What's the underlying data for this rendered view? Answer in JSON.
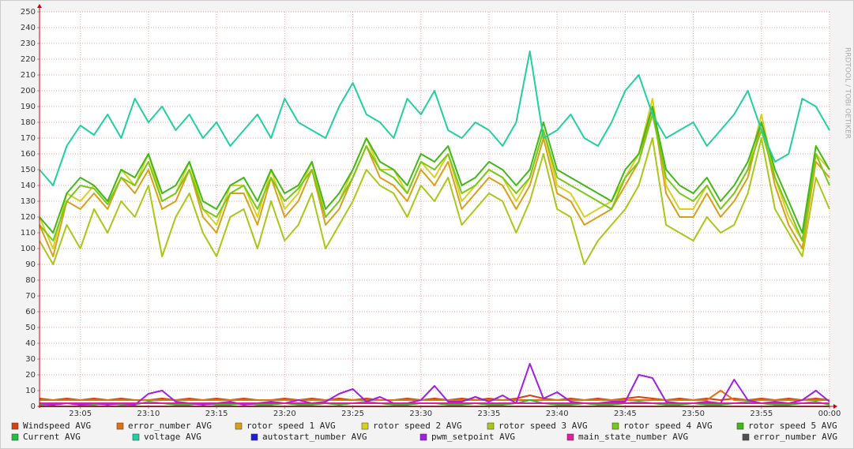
{
  "chart_data": {
    "type": "line",
    "watermark": "RRDTOOL / TOBI OETIKER",
    "xlim": [
      2,
      60
    ],
    "ylim": [
      0,
      250
    ],
    "yticks": [
      0,
      10,
      20,
      30,
      40,
      50,
      60,
      70,
      80,
      90,
      100,
      110,
      120,
      130,
      140,
      150,
      160,
      170,
      180,
      190,
      200,
      210,
      220,
      230,
      240,
      250
    ],
    "xticks": [
      {
        "value": 5,
        "label": "23:05"
      },
      {
        "value": 10,
        "label": "23:10"
      },
      {
        "value": 15,
        "label": "23:15"
      },
      {
        "value": 20,
        "label": "23:20"
      },
      {
        "value": 25,
        "label": "23:25"
      },
      {
        "value": 30,
        "label": "23:30"
      },
      {
        "value": 35,
        "label": "23:35"
      },
      {
        "value": 40,
        "label": "23:40"
      },
      {
        "value": 45,
        "label": "23:45"
      },
      {
        "value": 50,
        "label": "23:50"
      },
      {
        "value": 55,
        "label": "23:55"
      },
      {
        "value": 60,
        "label": "00:00"
      }
    ],
    "grid": true,
    "x": [
      2,
      3,
      4,
      5,
      6,
      7,
      8,
      9,
      10,
      11,
      12,
      13,
      14,
      15,
      16,
      17,
      18,
      19,
      20,
      21,
      22,
      23,
      24,
      25,
      26,
      27,
      28,
      29,
      30,
      31,
      32,
      33,
      34,
      35,
      36,
      37,
      38,
      39,
      40,
      41,
      42,
      43,
      44,
      45,
      46,
      47,
      48,
      49,
      50,
      51,
      52,
      53,
      54,
      55,
      56,
      57,
      58,
      59,
      60
    ],
    "series": [
      {
        "name": "Windspeed AVG",
        "color": "#d84010",
        "values": [
          5,
          4,
          5,
          4,
          5,
          4,
          5,
          4,
          4,
          5,
          4,
          5,
          4,
          5,
          4,
          5,
          4,
          4,
          5,
          4,
          5,
          4,
          5,
          4,
          5,
          4,
          4,
          5,
          4,
          5,
          4,
          5,
          4,
          5,
          4,
          5,
          7,
          5,
          4,
          5,
          4,
          5,
          4,
          5,
          6,
          5,
          4,
          5,
          4,
          5,
          4,
          5,
          4,
          5,
          4,
          5,
          4,
          5,
          4
        ]
      },
      {
        "name": "error_number AVG",
        "color": "#e07010",
        "values": [
          4,
          4,
          4,
          4,
          4,
          4,
          4,
          4,
          4,
          4,
          4,
          4,
          4,
          4,
          4,
          4,
          4,
          4,
          4,
          4,
          4,
          4,
          4,
          4,
          4,
          4,
          4,
          4,
          4,
          4,
          4,
          4,
          4,
          4,
          4,
          4,
          4,
          4,
          4,
          4,
          4,
          4,
          4,
          4,
          4,
          4,
          4,
          4,
          4,
          4,
          10,
          4,
          4,
          4,
          4,
          4,
          4,
          4,
          4
        ]
      },
      {
        "name": "rotor speed 1 AVG",
        "color": "#d8a018",
        "values": [
          115,
          95,
          130,
          125,
          135,
          125,
          145,
          135,
          150,
          125,
          130,
          150,
          120,
          110,
          135,
          135,
          115,
          145,
          120,
          130,
          150,
          115,
          125,
          145,
          165,
          145,
          140,
          130,
          150,
          140,
          155,
          125,
          135,
          145,
          140,
          125,
          140,
          170,
          135,
          130,
          115,
          120,
          125,
          140,
          155,
          190,
          135,
          120,
          120,
          135,
          120,
          130,
          145,
          180,
          140,
          115,
          100,
          155,
          145
        ]
      },
      {
        "name": "rotor speed 2 AVG",
        "color": "#d8d020",
        "values": [
          120,
          100,
          135,
          130,
          140,
          130,
          150,
          140,
          160,
          130,
          135,
          155,
          125,
          115,
          140,
          140,
          120,
          150,
          125,
          135,
          155,
          120,
          130,
          150,
          170,
          150,
          150,
          135,
          155,
          145,
          160,
          130,
          140,
          150,
          145,
          130,
          145,
          175,
          140,
          135,
          120,
          125,
          130,
          145,
          160,
          195,
          140,
          125,
          125,
          140,
          125,
          135,
          150,
          185,
          145,
          120,
          105,
          160,
          150
        ]
      },
      {
        "name": "rotor speed 3 AVG",
        "color": "#a8c818",
        "values": [
          105,
          90,
          115,
          100,
          125,
          110,
          130,
          120,
          140,
          95,
          120,
          135,
          110,
          95,
          120,
          125,
          100,
          130,
          105,
          115,
          135,
          100,
          115,
          130,
          150,
          140,
          135,
          120,
          140,
          130,
          145,
          115,
          125,
          135,
          130,
          110,
          130,
          160,
          125,
          120,
          90,
          105,
          115,
          125,
          140,
          170,
          115,
          110,
          105,
          120,
          110,
          115,
          135,
          170,
          125,
          110,
          95,
          145,
          125
        ]
      },
      {
        "name": "rotor speed 4 AVG",
        "color": "#78c818",
        "values": [
          115,
          105,
          130,
          140,
          138,
          128,
          145,
          140,
          155,
          130,
          135,
          150,
          125,
          120,
          135,
          140,
          125,
          145,
          130,
          138,
          150,
          120,
          130,
          145,
          165,
          150,
          145,
          135,
          155,
          150,
          160,
          135,
          140,
          150,
          145,
          135,
          145,
          175,
          145,
          140,
          135,
          130,
          125,
          145,
          155,
          185,
          145,
          135,
          130,
          140,
          125,
          135,
          150,
          175,
          145,
          125,
          105,
          160,
          140
        ]
      },
      {
        "name": "rotor speed 5 AVG",
        "color": "#40b818",
        "values": [
          120,
          110,
          135,
          145,
          140,
          130,
          150,
          145,
          160,
          135,
          140,
          155,
          130,
          125,
          140,
          145,
          130,
          150,
          135,
          140,
          155,
          125,
          135,
          150,
          170,
          155,
          150,
          140,
          160,
          155,
          165,
          140,
          145,
          155,
          150,
          140,
          150,
          180,
          150,
          145,
          140,
          135,
          130,
          150,
          160,
          190,
          150,
          140,
          135,
          145,
          130,
          140,
          155,
          180,
          150,
          130,
          110,
          165,
          150
        ]
      },
      {
        "name": "Current AVG",
        "color": "#20c040",
        "values": [
          1,
          1,
          2,
          1,
          1,
          2,
          1,
          1,
          3,
          2,
          1,
          1,
          2,
          1,
          1,
          2,
          1,
          1,
          2,
          1,
          1,
          2,
          1,
          2,
          3,
          2,
          1,
          1,
          2,
          2,
          1,
          1,
          2,
          1,
          1,
          2,
          4,
          2,
          1,
          1,
          2,
          1,
          1,
          2,
          3,
          2,
          1,
          1,
          2,
          1,
          1,
          2,
          3,
          2,
          1,
          1,
          2,
          3,
          1
        ]
      },
      {
        "name": "voltage AVG",
        "color": "#20d0a0",
        "values": [
          150,
          140,
          165,
          178,
          172,
          185,
          170,
          195,
          180,
          190,
          175,
          185,
          170,
          180,
          165,
          175,
          185,
          170,
          195,
          180,
          175,
          170,
          190,
          205,
          185,
          180,
          170,
          195,
          185,
          200,
          175,
          170,
          180,
          175,
          165,
          180,
          225,
          170,
          175,
          185,
          170,
          165,
          180,
          200,
          210,
          185,
          170,
          175,
          180,
          165,
          175,
          185,
          200,
          175,
          155,
          160,
          195,
          190,
          175
        ]
      },
      {
        "name": "autostart_number AVG",
        "color": "#2020d0",
        "values": [
          0,
          0,
          0,
          0,
          0,
          0,
          0,
          0,
          0,
          0,
          0,
          0,
          0,
          0,
          0,
          0,
          0,
          0,
          0,
          0,
          0,
          0,
          0,
          0,
          0,
          0,
          0,
          0,
          0,
          0,
          0,
          0,
          0,
          0,
          0,
          0,
          0,
          0,
          0,
          0,
          0,
          0,
          0,
          0,
          0,
          0,
          0,
          0,
          0,
          0,
          0,
          0,
          0,
          0,
          0,
          0,
          0,
          0,
          0
        ]
      },
      {
        "name": "pwm_setpoint AVG",
        "color": "#a020e0",
        "values": [
          2,
          1,
          2,
          1,
          2,
          1,
          2,
          1,
          8,
          10,
          3,
          2,
          1,
          2,
          3,
          1,
          2,
          3,
          2,
          4,
          2,
          3,
          8,
          11,
          3,
          6,
          2,
          2,
          4,
          13,
          3,
          3,
          6,
          3,
          7,
          2,
          27,
          5,
          9,
          3,
          2,
          2,
          3,
          3,
          20,
          18,
          3,
          2,
          2,
          3,
          2,
          17,
          4,
          2,
          3,
          2,
          4,
          10,
          3
        ]
      },
      {
        "name": "main_state_number AVG",
        "color": "#e020a0",
        "values": [
          2,
          2,
          2,
          2,
          2,
          2,
          2,
          2,
          2,
          2,
          2,
          2,
          2,
          2,
          2,
          2,
          2,
          2,
          2,
          2,
          2,
          2,
          2,
          2,
          2,
          2,
          2,
          2,
          2,
          2,
          2,
          2,
          2,
          2,
          2,
          2,
          2,
          2,
          2,
          2,
          2,
          2,
          2,
          2,
          2,
          2,
          2,
          2,
          2,
          2,
          2,
          2,
          2,
          2,
          2,
          2,
          2,
          2,
          2
        ]
      },
      {
        "name": "error_number AVG",
        "color": "#505050",
        "values": [
          0,
          0,
          0,
          0,
          0,
          0,
          0,
          0,
          0,
          0,
          0,
          0,
          0,
          0,
          0,
          0,
          0,
          0,
          0,
          0,
          0,
          0,
          0,
          0,
          0,
          0,
          0,
          0,
          0,
          0,
          0,
          0,
          0,
          0,
          0,
          0,
          0,
          0,
          0,
          0,
          0,
          0,
          0,
          0,
          0,
          0,
          0,
          0,
          0,
          0,
          0,
          0,
          0,
          0,
          0,
          0,
          0,
          0,
          0
        ]
      }
    ]
  }
}
